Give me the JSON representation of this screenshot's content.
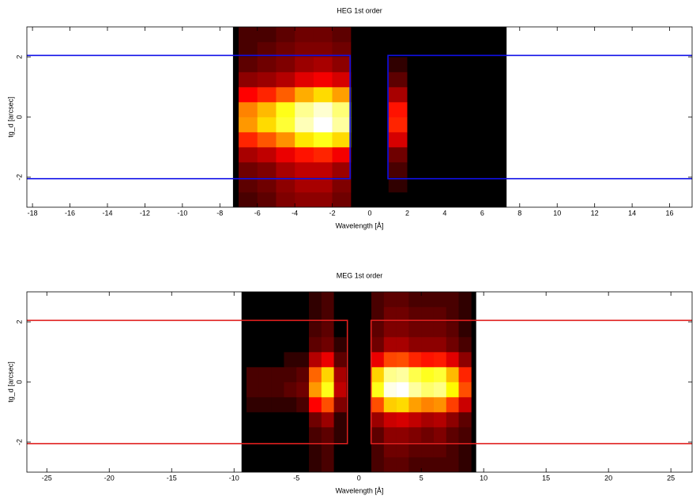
{
  "chart_data": [
    {
      "type": "heatmap",
      "title": "HEG 1st order",
      "xlabel": "Wavelength [Å]",
      "ylabel": "tg_d [arcsec]",
      "xlim": [
        -18.3,
        17.2
      ],
      "ylim": [
        -3,
        3
      ],
      "xticks": [
        -18,
        -16,
        -14,
        -12,
        -10,
        -8,
        -6,
        -4,
        -2,
        0,
        2,
        4,
        6,
        8,
        10,
        12,
        14,
        16
      ],
      "yticks": [
        -2,
        0,
        2
      ],
      "exposure_xlim": [
        -7.3,
        7.3
      ],
      "x_bins": [
        -7,
        -6,
        -5,
        -4,
        -3,
        -2,
        -1,
        0,
        1,
        2,
        3,
        4,
        5,
        6,
        7
      ],
      "y_bins": [
        -3,
        -2.5,
        -2,
        -1.5,
        -1,
        -0.5,
        0,
        0.5,
        1,
        1.5,
        2,
        2.5,
        3
      ],
      "z": [
        [
          0.02,
          0.03,
          0.05,
          0.06,
          0.06,
          0.04,
          0,
          0,
          0,
          0,
          0,
          0,
          0,
          0
        ],
        [
          0.03,
          0.04,
          0.06,
          0.08,
          0.08,
          0.05,
          0,
          0,
          0.01,
          0,
          0,
          0,
          0,
          0
        ],
        [
          0.04,
          0.05,
          0.08,
          0.1,
          0.1,
          0.07,
          0,
          0,
          0.02,
          0,
          0,
          0,
          0,
          0
        ],
        [
          0.08,
          0.1,
          0.14,
          0.18,
          0.2,
          0.15,
          0,
          0,
          0.04,
          0,
          0,
          0,
          0,
          0
        ],
        [
          0.2,
          0.26,
          0.34,
          0.47,
          0.55,
          0.45,
          0,
          0,
          0.12,
          0,
          0,
          0,
          0,
          0
        ],
        [
          0.35,
          0.45,
          0.6,
          0.85,
          1,
          0.8,
          0,
          0,
          0.2,
          0,
          0,
          0,
          0,
          0
        ],
        [
          0.32,
          0.4,
          0.55,
          0.77,
          0.9,
          0.72,
          0,
          0,
          0.18,
          0,
          0,
          0,
          0,
          0
        ],
        [
          0.16,
          0.2,
          0.27,
          0.38,
          0.45,
          0.36,
          0,
          0,
          0.08,
          0,
          0,
          0,
          0,
          0
        ],
        [
          0.06,
          0.07,
          0.09,
          0.13,
          0.15,
          0.12,
          0,
          0,
          0.03,
          0,
          0,
          0,
          0,
          0
        ],
        [
          0.03,
          0.04,
          0.05,
          0.07,
          0.08,
          0.06,
          0,
          0,
          0.01,
          0,
          0,
          0,
          0,
          0
        ],
        [
          0.02,
          0.03,
          0.04,
          0.05,
          0.05,
          0.04,
          0,
          0,
          0,
          0,
          0,
          0,
          0,
          0
        ],
        [
          0.02,
          0.02,
          0.03,
          0.04,
          0.04,
          0.03,
          0,
          0,
          0,
          0,
          0,
          0,
          0,
          0
        ]
      ],
      "region_color": "#1010e8",
      "regions": [
        {
          "x0": -19,
          "x1": -1.05,
          "y0": -2.05,
          "y1": 2.05
        },
        {
          "x0": 0.97,
          "x1": 18,
          "y0": -2.05,
          "y1": 2.05
        }
      ]
    },
    {
      "type": "heatmap",
      "title": "MEG 1st order",
      "xlabel": "Wavelength [Å]",
      "ylabel": "tg_d [arcsec]",
      "xlim": [
        -26.6,
        26.7
      ],
      "ylim": [
        -3,
        3
      ],
      "xticks": [
        -25,
        -20,
        -15,
        -10,
        -5,
        0,
        5,
        10,
        15,
        20,
        25
      ],
      "yticks": [
        -2,
        0,
        2
      ],
      "exposure_xlim": [
        -9.4,
        9.4
      ],
      "x_bins": [
        -9,
        -8,
        -7,
        -6,
        -5,
        -4,
        -3,
        -2,
        -1,
        0,
        1,
        2,
        3,
        4,
        5,
        6,
        7,
        8,
        9
      ],
      "y_bins": [
        -3,
        -2.5,
        -2,
        -1.5,
        -1,
        -0.5,
        0,
        0.5,
        1,
        1.5,
        2,
        2.5,
        3
      ],
      "z": [
        [
          0,
          0,
          0,
          0,
          0,
          0.01,
          0.02,
          0,
          0,
          0,
          0.02,
          0.03,
          0.03,
          0.02,
          0.02,
          0.02,
          0.02,
          0.01
        ],
        [
          0,
          0,
          0,
          0,
          0,
          0.01,
          0.02,
          0,
          0,
          0,
          0.02,
          0.04,
          0.04,
          0.03,
          0.03,
          0.03,
          0.02,
          0.01
        ],
        [
          0,
          0,
          0,
          0,
          0,
          0.02,
          0.03,
          0.01,
          0,
          0,
          0.03,
          0.06,
          0.06,
          0.05,
          0.04,
          0.05,
          0.03,
          0.02
        ],
        [
          0,
          0,
          0,
          0,
          0,
          0.04,
          0.07,
          0.01,
          0,
          0,
          0.07,
          0.11,
          0.12,
          0.1,
          0.08,
          0.09,
          0.06,
          0.03
        ],
        [
          0.01,
          0.01,
          0.01,
          0.01,
          0.02,
          0.16,
          0.25,
          0.05,
          0,
          0,
          0.25,
          0.43,
          0.45,
          0.36,
          0.32,
          0.34,
          0.23,
          0.11
        ],
        [
          0.02,
          0.02,
          0.02,
          0.03,
          0.04,
          0.35,
          0.55,
          0.1,
          0,
          0,
          0.55,
          0.95,
          1,
          0.8,
          0.7,
          0.75,
          0.5,
          0.25
        ],
        [
          0.02,
          0.02,
          0.02,
          0.02,
          0.03,
          0.28,
          0.44,
          0.08,
          0,
          0,
          0.44,
          0.76,
          0.8,
          0.64,
          0.56,
          0.6,
          0.4,
          0.2
        ],
        [
          0,
          0,
          0,
          0.01,
          0.01,
          0.09,
          0.14,
          0.03,
          0,
          0,
          0.14,
          0.24,
          0.25,
          0.2,
          0.18,
          0.19,
          0.13,
          0.06
        ],
        [
          0,
          0,
          0,
          0,
          0,
          0.03,
          0.04,
          0.01,
          0,
          0,
          0.04,
          0.08,
          0.08,
          0.06,
          0.06,
          0.06,
          0.04,
          0.02
        ],
        [
          0,
          0,
          0,
          0,
          0,
          0.02,
          0.03,
          0,
          0,
          0,
          0.03,
          0.05,
          0.05,
          0.04,
          0.04,
          0.04,
          0.03,
          0.01
        ],
        [
          0,
          0,
          0,
          0,
          0,
          0.01,
          0.02,
          0,
          0,
          0,
          0.02,
          0.04,
          0.04,
          0.03,
          0.03,
          0.03,
          0.02,
          0.01
        ],
        [
          0,
          0,
          0,
          0,
          0,
          0.01,
          0.02,
          0,
          0,
          0,
          0.02,
          0.03,
          0.03,
          0.02,
          0.02,
          0.02,
          0.02,
          0.01
        ]
      ],
      "region_color": "#e0201e",
      "regions": [
        {
          "x0": -28,
          "x1": -0.92,
          "y0": -2.05,
          "y1": 2.05
        },
        {
          "x0": 0.98,
          "x1": 28,
          "y0": -2.05,
          "y1": 2.05
        }
      ]
    }
  ]
}
